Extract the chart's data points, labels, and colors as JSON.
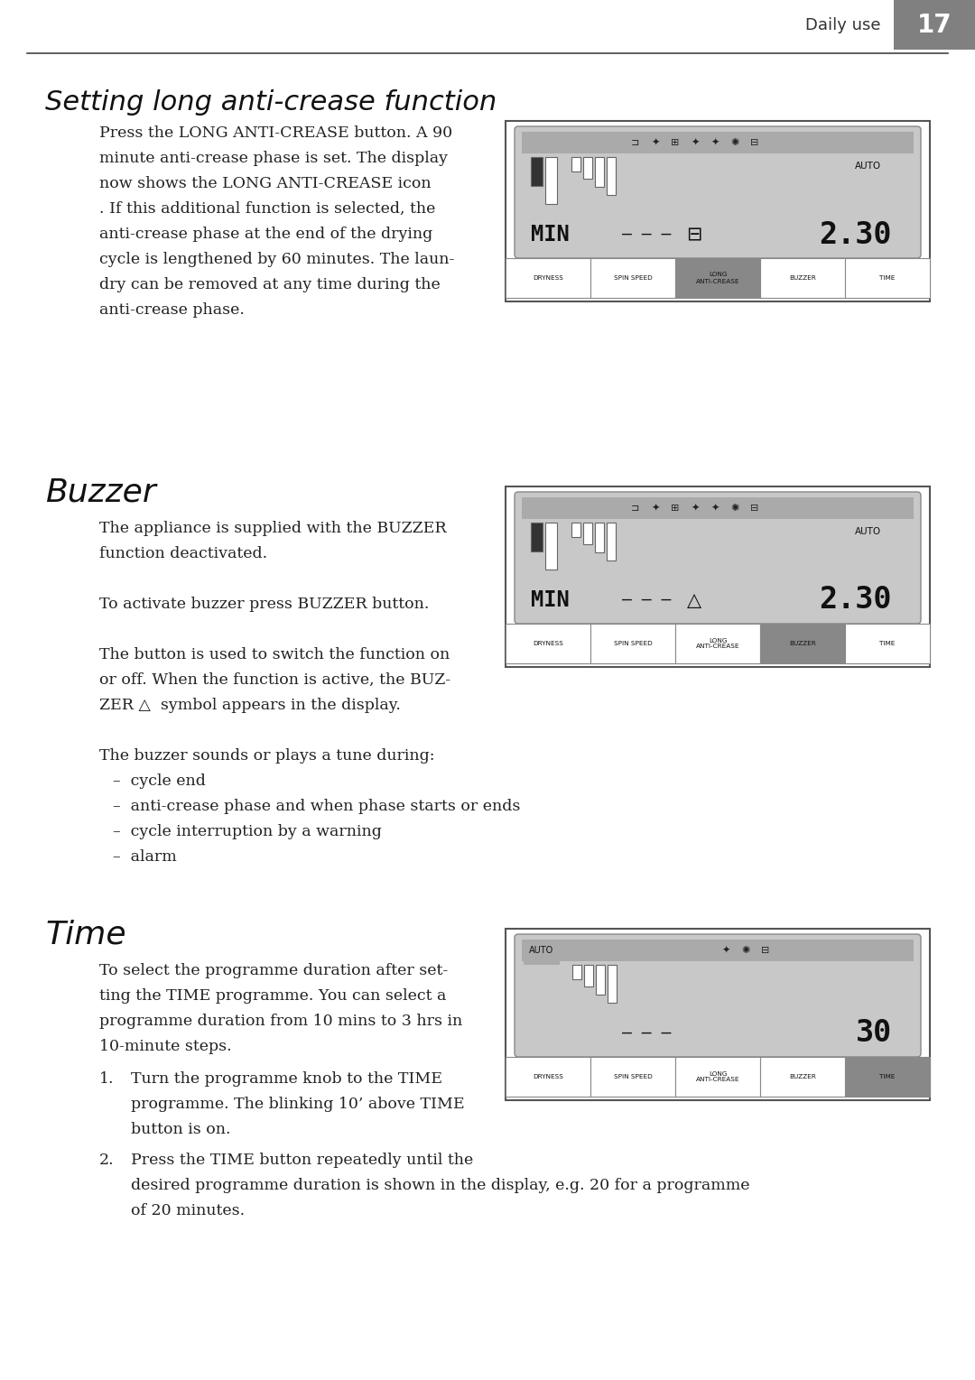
{
  "page_header_text": "Daily use",
  "page_number": "17",
  "header_bg_color": "#808080",
  "header_text_color": "#ffffff",
  "bg_color": "#ffffff",
  "line_color": "#333333",
  "section1_title": "Setting long anti-crease function",
  "section1_body": [
    "Press the LONG ANTI-CREASE button. A 90",
    "minute anti-crease phase is set. The display",
    "now shows the LONG ANTI-CREASE icon",
    ". If this additional function is selected, the",
    "anti-crease phase at the end of the drying",
    "cycle is lengthened by 60 minutes. The laun-",
    "dry can be removed at any time during the",
    "anti-crease phase."
  ],
  "section2_title": "Buzzer",
  "section2_body": [
    "The appliance is supplied with the BUZZER",
    "function deactivated.",
    "",
    "To activate buzzer press BUZZER button.",
    "",
    "The button is used to switch the function on",
    "or off. When the function is active, the BUZ-",
    "ZER △  symbol appears in the display.",
    "",
    "The buzzer sounds or plays a tune during:"
  ],
  "section2_bullets": [
    "–  cycle end",
    "–  anti-crease phase and when phase starts or ends",
    "–  cycle interruption by a warning",
    "–  alarm"
  ],
  "section3_title": "Time",
  "section3_body_pre": [
    "To select the programme duration after set-",
    "ting the TIME programme. You can select a",
    "programme duration from 10 mins to 3 hrs in",
    "10-minute steps."
  ],
  "section3_item1": [
    "Turn the programme knob to the TIME",
    "programme. The blinking 10’ above TIME",
    "button is on."
  ],
  "section3_item2": [
    "Press the TIME button repeatedly until the",
    "desired programme duration is shown in the display, e.g. 20 for a programme",
    "of 20 minutes."
  ],
  "button_labels": [
    "DRYNESS",
    "SPIN SPEED",
    "LONG\nANTI-CREASE",
    "BUZZER",
    "TIME"
  ],
  "panel1_highlight": 2,
  "panel2_highlight": 3,
  "panel3_highlight": 4,
  "highlight_color": "#888888",
  "screen_bg": "#c8c8c8",
  "screen_topbar": "#aaaaaa",
  "panel_border": "#555555"
}
